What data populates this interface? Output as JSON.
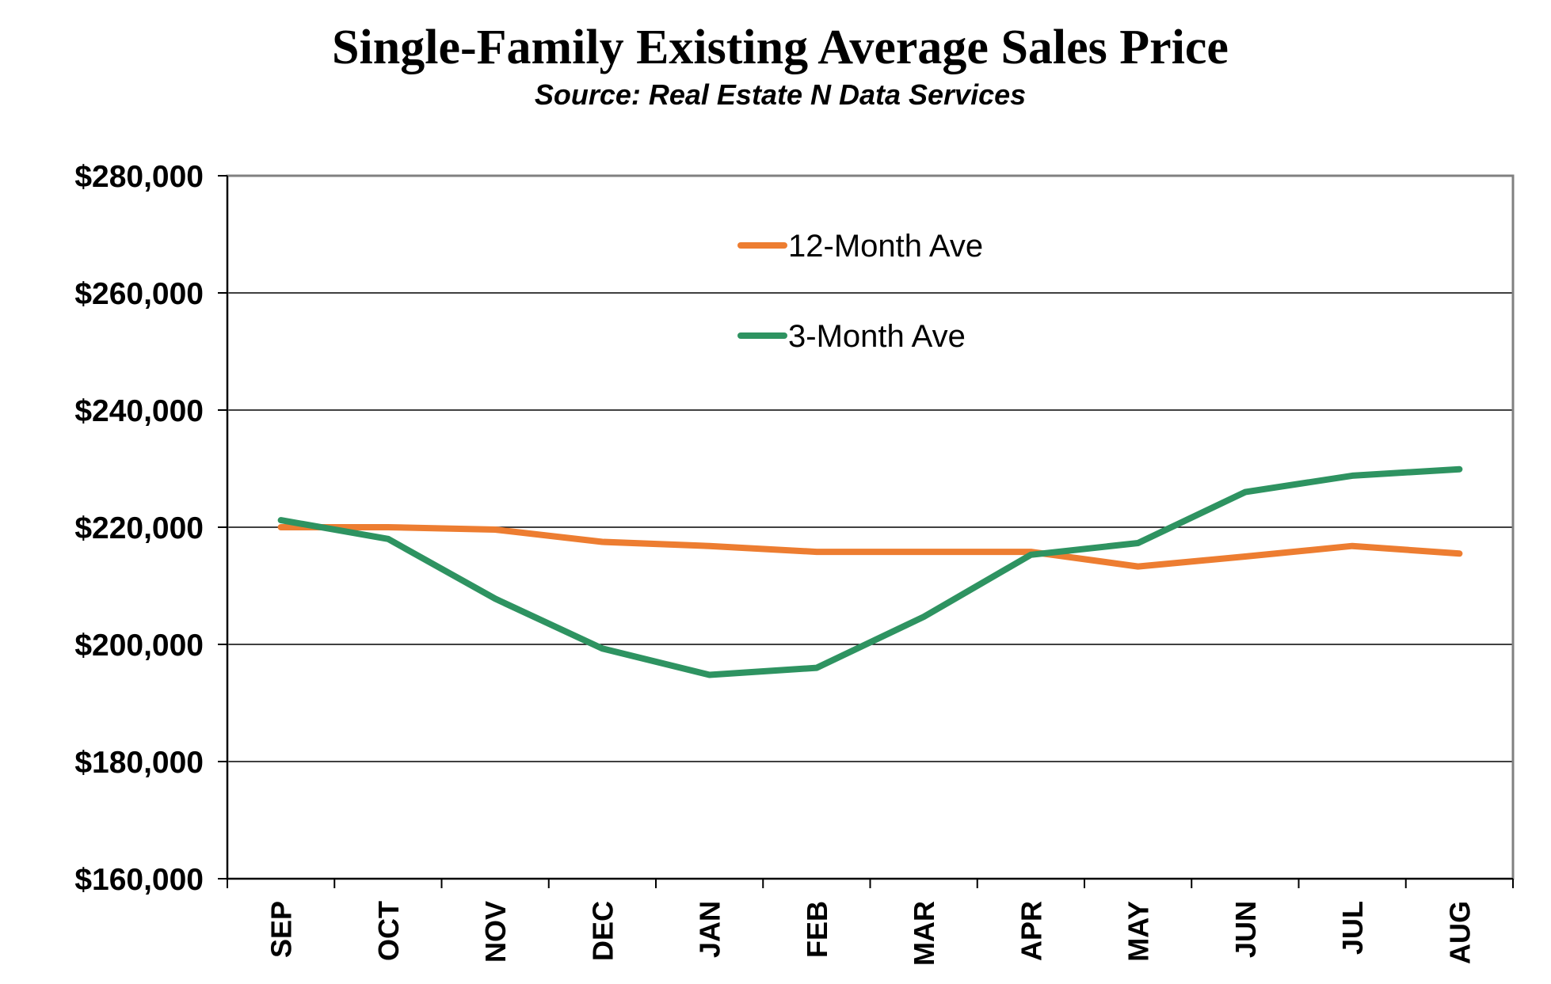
{
  "chart_data": {
    "type": "line",
    "title": "Single-Family Existing Average Sales Price",
    "subtitle": "Source: Real Estate N Data Services",
    "xlabel": "",
    "ylabel": "",
    "categories": [
      "SEP",
      "OCT",
      "NOV",
      "DEC",
      "JAN",
      "FEB",
      "MAR",
      "APR",
      "MAY",
      "JUN",
      "JUL",
      "AUG"
    ],
    "ylim": [
      160000,
      280000
    ],
    "yticks": [
      160000,
      180000,
      200000,
      220000,
      240000,
      260000,
      280000
    ],
    "ytick_labels": [
      "$160,000",
      "$180,000",
      "$200,000",
      "$220,000",
      "$240,000",
      "$260,000",
      "$280,000"
    ],
    "grid": true,
    "legend_position": "top-center",
    "series": [
      {
        "name": "12-Month Ave",
        "color": "#ED7D31",
        "values": [
          220000,
          220000,
          219600,
          217500,
          216800,
          215800,
          215800,
          215800,
          213300,
          215000,
          216800,
          215500
        ]
      },
      {
        "name": "3-Month Ave",
        "color": "#2E9361",
        "values": [
          221200,
          218000,
          207800,
          199300,
          194800,
          196000,
          204700,
          215300,
          217300,
          226000,
          228800,
          229900
        ]
      }
    ]
  }
}
